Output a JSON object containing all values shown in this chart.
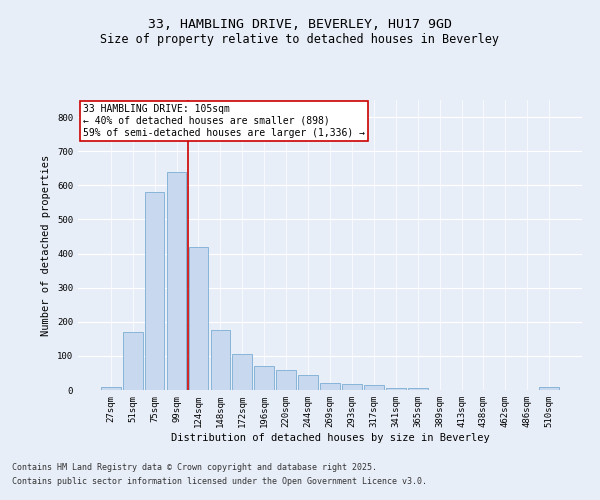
{
  "title1": "33, HAMBLING DRIVE, BEVERLEY, HU17 9GD",
  "title2": "Size of property relative to detached houses in Beverley",
  "xlabel": "Distribution of detached houses by size in Beverley",
  "ylabel": "Number of detached properties",
  "categories": [
    "27sqm",
    "51sqm",
    "75sqm",
    "99sqm",
    "124sqm",
    "148sqm",
    "172sqm",
    "196sqm",
    "220sqm",
    "244sqm",
    "269sqm",
    "293sqm",
    "317sqm",
    "341sqm",
    "365sqm",
    "389sqm",
    "413sqm",
    "438sqm",
    "462sqm",
    "486sqm",
    "510sqm"
  ],
  "values": [
    10,
    170,
    580,
    640,
    420,
    175,
    105,
    70,
    60,
    45,
    20,
    18,
    15,
    5,
    5,
    0,
    0,
    0,
    0,
    0,
    8
  ],
  "bar_color": "#c8d9ef",
  "bar_edge_color": "#7aadd4",
  "vline_x": 3.5,
  "vline_color": "#cc0000",
  "annotation_text": "33 HAMBLING DRIVE: 105sqm\n← 40% of detached houses are smaller (898)\n59% of semi-detached houses are larger (1,336) →",
  "annotation_box_color": "#ffffff",
  "annotation_box_edge_color": "#cc0000",
  "ylim": [
    0,
    850
  ],
  "yticks": [
    0,
    100,
    200,
    300,
    400,
    500,
    600,
    700,
    800
  ],
  "bg_color": "#e8eef8",
  "plot_bg_color": "#e8eef8",
  "grid_color": "#ffffff",
  "footer1": "Contains HM Land Registry data © Crown copyright and database right 2025.",
  "footer2": "Contains public sector information licensed under the Open Government Licence v3.0.",
  "title_fontsize": 9.5,
  "subtitle_fontsize": 8.5,
  "axis_label_fontsize": 7.5,
  "tick_fontsize": 6.5,
  "annotation_fontsize": 7,
  "footer_fontsize": 6
}
